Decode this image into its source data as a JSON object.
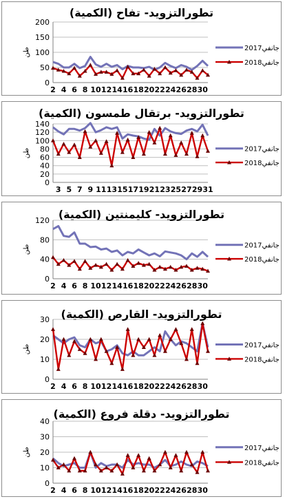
{
  "colors": {
    "series_2017": "#7373b7",
    "series_2018": "#cc0000",
    "marker_2018": "#6b0000",
    "grid": "#bfbfbf"
  },
  "chart_data": [
    {
      "type": "line",
      "title": "تطورالتزويد- تفاح (الكمية)",
      "ylabel": "طن",
      "ylim": [
        0,
        200
      ],
      "yticks": [
        0,
        50,
        100,
        150,
        200
      ],
      "xticklabels": [
        "2",
        "4",
        "6",
        "8",
        "10",
        "12",
        "14",
        "16",
        "18",
        "20",
        "22",
        "24",
        "26",
        "28",
        "30"
      ],
      "x": [
        2,
        3,
        4,
        5,
        6,
        7,
        8,
        9,
        10,
        11,
        12,
        13,
        14,
        15,
        16,
        17,
        18,
        19,
        20,
        21,
        22,
        23,
        24,
        25,
        26,
        27,
        28,
        29,
        30,
        31
      ],
      "series": [
        {
          "name": "جانفي2017",
          "values": [
            68,
            62,
            50,
            50,
            62,
            48,
            55,
            85,
            60,
            52,
            62,
            52,
            58,
            44,
            55,
            50,
            50,
            48,
            52,
            42,
            50,
            65,
            55,
            48,
            58,
            52,
            42,
            55,
            72,
            55
          ]
        },
        {
          "name": "جانفي2018",
          "values": [
            48,
            42,
            38,
            30,
            48,
            22,
            38,
            58,
            28,
            35,
            35,
            28,
            40,
            15,
            52,
            30,
            30,
            42,
            22,
            45,
            30,
            50,
            32,
            40,
            25,
            42,
            35,
            15,
            40,
            25
          ]
        }
      ]
    },
    {
      "type": "line",
      "title": "تطورالتزويد- برتقال طمسون (الكمية)",
      "ylabel": "طن",
      "ylim": [
        0,
        140
      ],
      "yticks": [
        0,
        20,
        40,
        60,
        80,
        100,
        120,
        140
      ],
      "xticklabels": [
        "3",
        "5",
        "7",
        "9",
        "11",
        "13",
        "15",
        "17",
        "19",
        "21",
        "23",
        "25",
        "27",
        "29",
        "31"
      ],
      "x": [
        2,
        3,
        4,
        5,
        6,
        7,
        8,
        9,
        10,
        11,
        12,
        13,
        14,
        15,
        16,
        17,
        18,
        19,
        20,
        21,
        22,
        23,
        24,
        25,
        26,
        27,
        28,
        29,
        30,
        31
      ],
      "series": [
        {
          "name": "جانفي2017",
          "values": [
            132,
            122,
            115,
            128,
            128,
            124,
            130,
            142,
            120,
            125,
            132,
            128,
            132,
            105,
            115,
            112,
            110,
            105,
            102,
            128,
            112,
            130,
            122,
            118,
            116,
            124,
            128,
            122,
            138,
            112
          ]
        },
        {
          "name": "جانفي2018",
          "values": [
            100,
            68,
            92,
            72,
            90,
            60,
            122,
            85,
            100,
            70,
            98,
            40,
            118,
            72,
            102,
            60,
            108,
            68,
            120,
            95,
            130,
            68,
            112,
            65,
            95,
            68,
            118,
            62,
            112,
            75
          ]
        }
      ]
    },
    {
      "type": "line",
      "title": "تطورالتزويد- كليمنتين (الكمية)",
      "ylabel": "طن",
      "ylim": [
        0,
        120
      ],
      "yticks": [
        0,
        40,
        80,
        120
      ],
      "xticklabels": [
        "2",
        "4",
        "6",
        "8",
        "10",
        "12",
        "14",
        "16",
        "18",
        "20",
        "22",
        "24",
        "26",
        "28",
        "30"
      ],
      "x": [
        2,
        3,
        4,
        5,
        6,
        7,
        8,
        9,
        10,
        11,
        12,
        13,
        14,
        15,
        16,
        17,
        18,
        19,
        20,
        21,
        22,
        23,
        24,
        25,
        26,
        27,
        28,
        29,
        30,
        31
      ],
      "series": [
        {
          "name": "جانفي2017",
          "values": [
            102,
            108,
            88,
            86,
            95,
            72,
            72,
            65,
            66,
            60,
            62,
            55,
            58,
            48,
            55,
            52,
            60,
            54,
            48,
            52,
            46,
            56,
            54,
            52,
            48,
            40,
            52,
            45,
            55,
            45
          ]
        },
        {
          "name": "جانفي2018",
          "values": [
            44,
            30,
            38,
            28,
            36,
            20,
            36,
            22,
            28,
            24,
            30,
            18,
            30,
            20,
            38,
            26,
            32,
            28,
            30,
            18,
            24,
            20,
            24,
            18,
            24,
            26,
            18,
            22,
            20,
            16
          ]
        }
      ]
    },
    {
      "type": "line",
      "title": "تطورالتزويد- القارص (الكمية)",
      "ylabel": "طن",
      "ylim": [
        0,
        30
      ],
      "yticks": [
        0,
        10,
        20,
        30
      ],
      "xticklabels": [
        "2",
        "4",
        "6",
        "8",
        "10",
        "12",
        "14",
        "16",
        "18",
        "20",
        "22",
        "24",
        "26",
        "28",
        "30"
      ],
      "x": [
        2,
        3,
        4,
        5,
        6,
        7,
        8,
        9,
        10,
        11,
        12,
        13,
        14,
        15,
        16,
        17,
        18,
        19,
        20,
        21,
        22,
        23,
        24,
        25,
        26,
        27,
        28,
        29,
        30,
        31
      ],
      "series": [
        {
          "name": "جانفي2017",
          "values": [
            22,
            20,
            18,
            20,
            21,
            17,
            16,
            20,
            18,
            19,
            14,
            15,
            17,
            13,
            12,
            14,
            12,
            12,
            14,
            16,
            14,
            24,
            20,
            17,
            19,
            18,
            16,
            14,
            28,
            16
          ]
        },
        {
          "name": "جانفي2018",
          "values": [
            25,
            5,
            20,
            12,
            19,
            15,
            13,
            20,
            10,
            20,
            14,
            8,
            16,
            5,
            25,
            12,
            20,
            16,
            20,
            12,
            22,
            14,
            20,
            25,
            18,
            10,
            25,
            8,
            28,
            14
          ]
        }
      ]
    },
    {
      "type": "line",
      "title": "تطورالتزويد- دقلة فروع (الكمية)",
      "ylabel": "طن",
      "ylim": [
        0,
        40
      ],
      "yticks": [
        0,
        10,
        20,
        30,
        40
      ],
      "xticklabels": [
        "2",
        "4",
        "6",
        "8",
        "10",
        "12",
        "14",
        "16",
        "18",
        "20",
        "22",
        "24",
        "26",
        "28",
        "30"
      ],
      "x": [
        2,
        3,
        4,
        5,
        6,
        7,
        8,
        9,
        10,
        11,
        12,
        13,
        14,
        15,
        16,
        17,
        18,
        19,
        20,
        21,
        22,
        23,
        24,
        25,
        26,
        27,
        28,
        29,
        30,
        31
      ],
      "series": [
        {
          "name": "جانفي2017",
          "values": [
            16,
            13,
            11,
            12,
            13,
            10,
            10,
            20,
            10,
            13,
            11,
            12,
            12,
            10,
            15,
            12,
            13,
            12,
            12,
            10,
            12,
            15,
            11,
            12,
            14,
            12,
            11,
            14,
            13,
            11
          ]
        },
        {
          "name": "جانفي2018",
          "values": [
            15,
            10,
            12,
            8,
            16,
            8,
            8,
            20,
            12,
            8,
            10,
            8,
            12,
            6,
            18,
            10,
            18,
            8,
            16,
            8,
            12,
            20,
            10,
            18,
            8,
            20,
            12,
            7,
            20,
            8
          ]
        }
      ]
    }
  ]
}
